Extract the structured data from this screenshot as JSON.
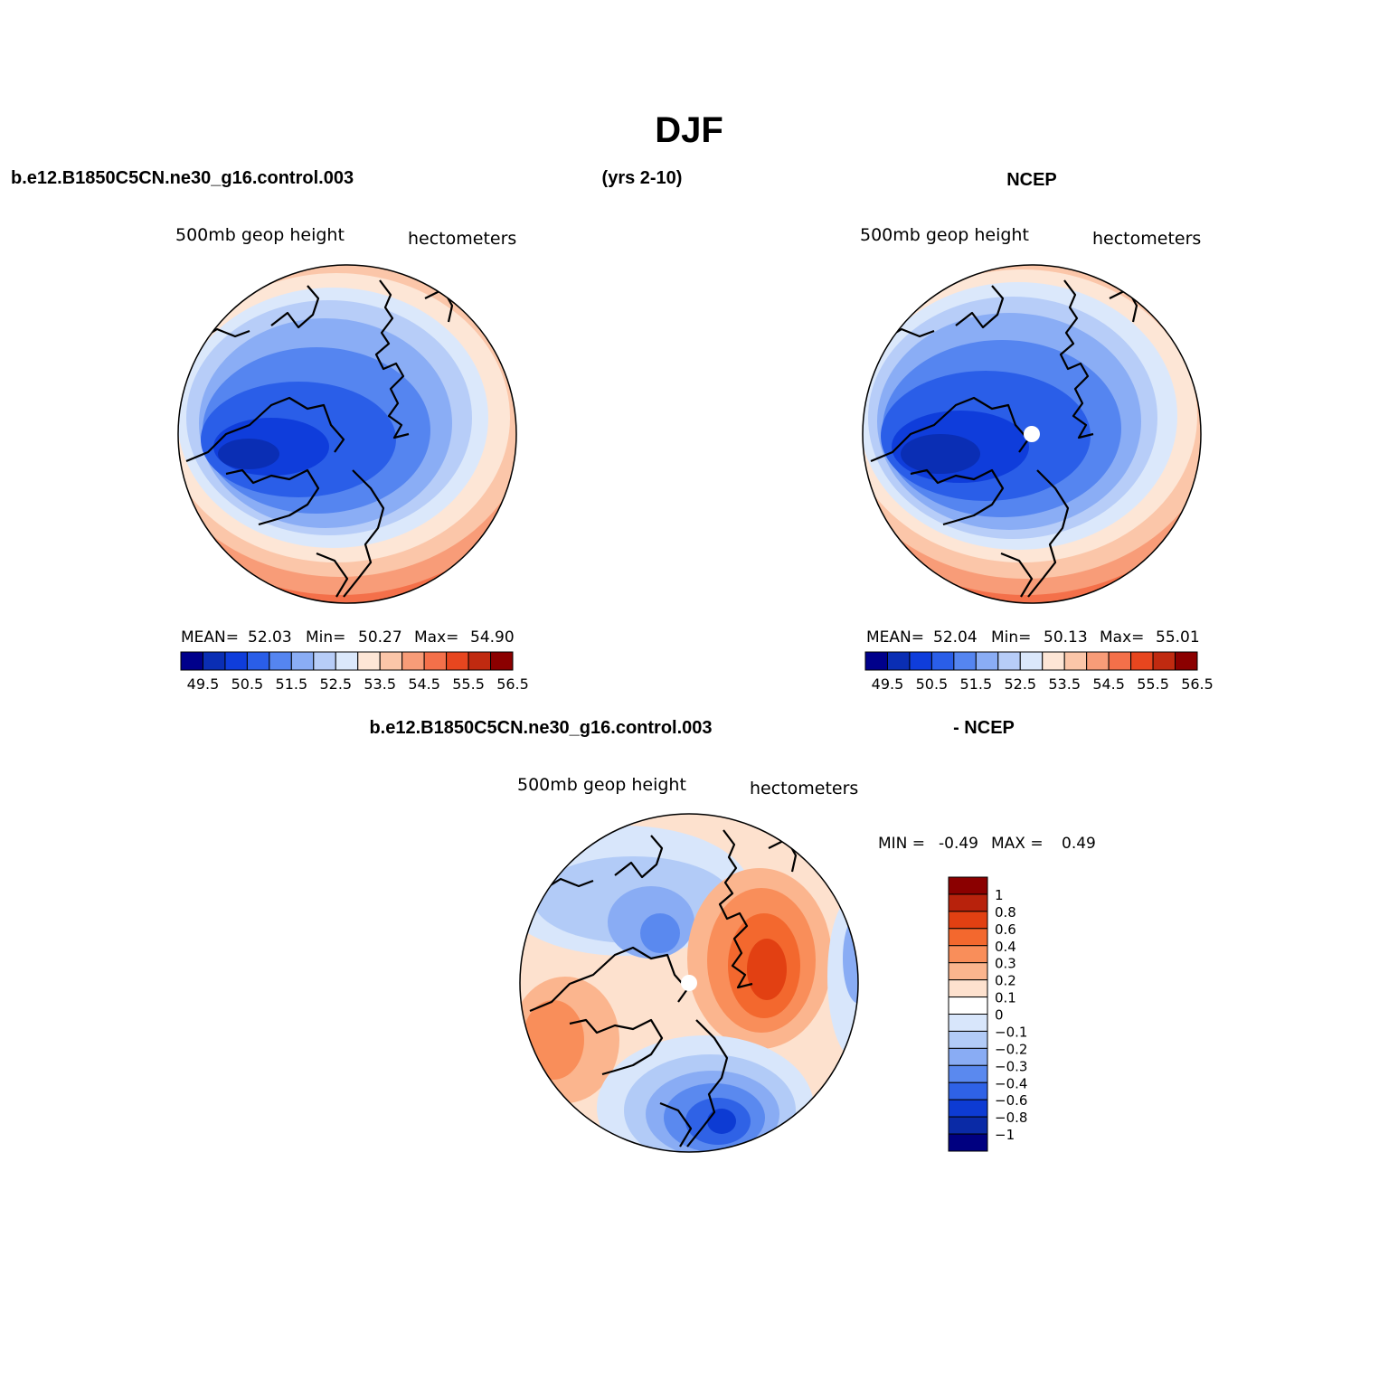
{
  "figure": {
    "title": "DJF",
    "case_label": "b.e12.B1850C5CN.ne30_g16.control.003",
    "years_label": "(yrs 2-10)",
    "obs_label": "NCEP",
    "diff_case_label": "b.e12.B1850C5CN.ne30_g16.control.003",
    "diff_obs_label": "- NCEP"
  },
  "panels": [
    {
      "id": "model",
      "variable_label": "500mb geop height",
      "units_label": "hectometers",
      "stats": {
        "mean_label": "MEAN=",
        "mean": "52.03",
        "min_label": "Min=",
        "min": "50.27",
        "max_label": "Max=",
        "max": "54.90"
      }
    },
    {
      "id": "obs",
      "variable_label": "500mb geop height",
      "units_label": "hectometers",
      "stats": {
        "mean_label": "MEAN=",
        "mean": "52.04",
        "min_label": "Min=",
        "min": "50.13",
        "max_label": "Max=",
        "max": "55.01"
      }
    },
    {
      "id": "diff",
      "variable_label": "500mb geop height",
      "units_label": "hectometers",
      "stats": {
        "min_label": "MIN =",
        "min": "-0.49",
        "max_label": "MAX =",
        "max": "0.49"
      }
    }
  ],
  "colorbar_abs": {
    "colors": [
      "#00008b",
      "#0a2eb4",
      "#0f3ddb",
      "#2a5ee8",
      "#5585f0",
      "#8aadf5",
      "#b7cdf8",
      "#dbe8fb",
      "#fde6d6",
      "#fbc6a9",
      "#f89c78",
      "#f4704a",
      "#e7461f",
      "#c02a10",
      "#8b0000"
    ],
    "tick_labels": [
      "49.5",
      "50.5",
      "51.5",
      "52.5",
      "53.5",
      "54.5",
      "55.5",
      "56.5"
    ]
  },
  "colorbar_diff": {
    "colors": [
      "#8b0000",
      "#b8220c",
      "#e24012",
      "#f3682e",
      "#f98e5a",
      "#fbb58e",
      "#fde1ce",
      "#ffffff",
      "#d8e6fb",
      "#b2cbf7",
      "#89acf4",
      "#5a89ef",
      "#2f62e6",
      "#0d3bd3",
      "#0a2aa6",
      "#000080"
    ],
    "tick_labels": [
      "1",
      "0.8",
      "0.6",
      "0.4",
      "0.3",
      "0.2",
      "0.1",
      "0",
      "−0.1",
      "−0.2",
      "−0.3",
      "−0.4",
      "−0.6",
      "−0.8",
      "−1"
    ]
  }
}
